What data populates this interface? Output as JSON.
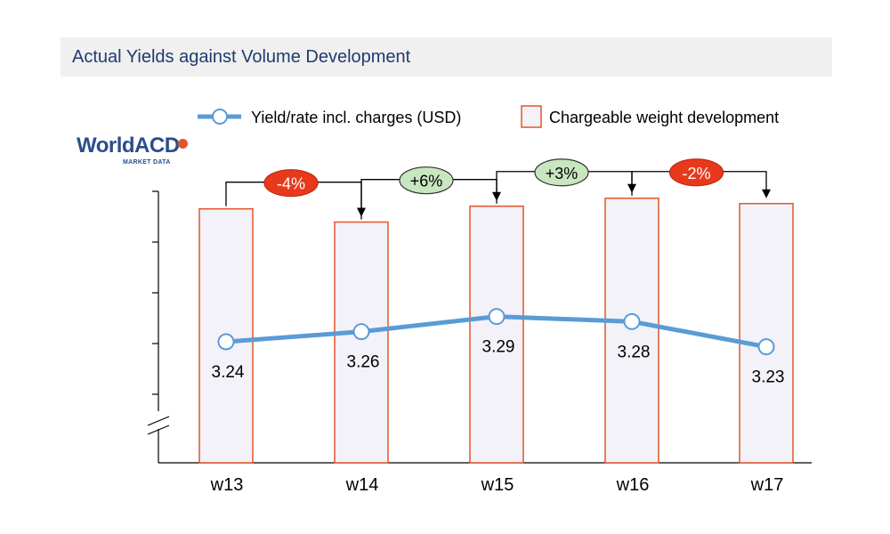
{
  "title": "Actual Yields against Volume Development",
  "logo": {
    "name": "WorldACD",
    "subtitle": "MARKET DATA"
  },
  "colors": {
    "title_text": "#1f3b6e",
    "title_bg": "#f0f0f0",
    "line": "#5b9bd5",
    "bar_fill": "#f2f2f8",
    "bar_stroke": "#e2552b",
    "badge_negative": "#e8391c",
    "badge_positive": "#c8e6c0",
    "logo": "#2b4d8c"
  },
  "chart_data": {
    "type": "bar+line",
    "categories": [
      "w13",
      "w14",
      "w15",
      "w16",
      "w17"
    ],
    "legend": {
      "line_label": "Yield/rate incl. charges (USD)",
      "bar_label": "Chargeable weight development",
      "placement": "top"
    },
    "series": [
      {
        "name": "Chargeable weight development",
        "kind": "bar",
        "values": [
          96,
          91,
          97,
          100,
          98
        ],
        "ylim": [
          0,
          108
        ],
        "axis_break": true
      },
      {
        "name": "Yield/rate incl. charges (USD)",
        "kind": "line",
        "values": [
          3.24,
          3.26,
          3.29,
          3.28,
          3.23
        ],
        "labels": [
          "3.24",
          "3.26",
          "3.29",
          "3.28",
          "3.23"
        ],
        "ylim": [
          3.0,
          3.6
        ]
      }
    ],
    "changes": [
      {
        "from": "w13",
        "to": "w14",
        "label": "-4%",
        "sign": "negative"
      },
      {
        "from": "w14",
        "to": "w15",
        "label": "+6%",
        "sign": "positive"
      },
      {
        "from": "w15",
        "to": "w16",
        "label": "+3%",
        "sign": "positive"
      },
      {
        "from": "w16",
        "to": "w17",
        "label": "-2%",
        "sign": "negative"
      }
    ]
  }
}
